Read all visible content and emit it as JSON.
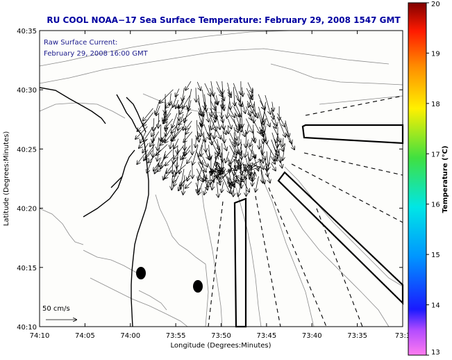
{
  "title": "RU COOL  NOAA−17  Sea Surface Temperature:  February 29, 2008 1547 GMT",
  "annotation": {
    "line1": "Raw Surface Current:",
    "line2": "February 29, 2008 16:00 GMT"
  },
  "scale_label": "50 cm/s",
  "axes": {
    "xlabel": "Longitude (Degrees:Minutes)",
    "ylabel": "Latitude (Degrees:Minutes)",
    "x_ticks": [
      "74:10",
      "74:05",
      "74:00",
      "73:55",
      "73:50",
      "73:45",
      "73:40",
      "73:35",
      "73:3"
    ],
    "y_ticks": [
      "40:35",
      "40:30",
      "40:25",
      "40:20",
      "40:15",
      "40:10"
    ]
  },
  "colorbar": {
    "label": "Temperature (°C)",
    "min": 13,
    "max": 20,
    "ticks": [
      "20",
      "19",
      "18",
      "17",
      "16",
      "15",
      "14",
      "13"
    ]
  },
  "colors": {
    "title": "#0000a0",
    "annotation": "#1a1a8c",
    "contour": "#8a8a8a",
    "map_background": "#fdfdfb"
  }
}
